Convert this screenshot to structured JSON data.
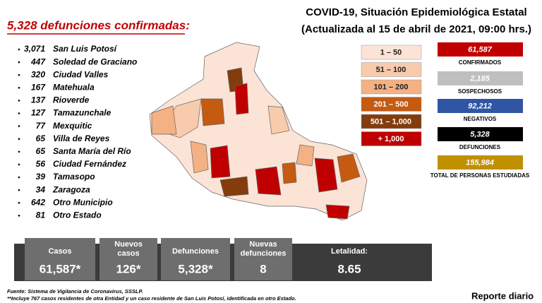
{
  "header": {
    "subtitle": "5,328 defunciones confirmadas:",
    "title_line1": "COVID-19, Situación Epidemiológica Estatal",
    "title_line2": "(Actualizada al 15 de abril de 2021, 09:00 hrs.)"
  },
  "municipalities": [
    {
      "count": "3,071",
      "name": "San Luis Potosí"
    },
    {
      "count": "447",
      "name": "Soledad de Graciano"
    },
    {
      "count": "320",
      "name": "Ciudad Valles"
    },
    {
      "count": "167",
      "name": "Matehuala"
    },
    {
      "count": "137",
      "name": "Rioverde"
    },
    {
      "count": "127",
      "name": "Tamazunchale"
    },
    {
      "count": "77",
      "name": "Mexquitic"
    },
    {
      "count": "65",
      "name": "Villa de Reyes"
    },
    {
      "count": "65",
      "name": "Santa María del Río"
    },
    {
      "count": "56",
      "name": "Ciudad Fernández"
    },
    {
      "count": "39",
      "name": "Tamasopo"
    },
    {
      "count": "34",
      "name": "Zaragoza"
    },
    {
      "count": "642",
      "name": "Otro Municipio"
    },
    {
      "count": "81",
      "name": "Otro Estado"
    }
  ],
  "legend": [
    {
      "label": "1 – 50",
      "color": "#fbe3d6",
      "text_color": "#222"
    },
    {
      "label": "51 – 100",
      "color": "#f8cbad",
      "text_color": "#222"
    },
    {
      "label": "101 – 200",
      "color": "#f4b183",
      "text_color": "#222"
    },
    {
      "label": "201 – 500",
      "color": "#c55a11",
      "text_color": "#fff"
    },
    {
      "label": "501 – 1,000",
      "color": "#843c0c",
      "text_color": "#fff"
    },
    {
      "label": "+ 1,000",
      "color": "#c00000",
      "text_color": "#fff"
    }
  ],
  "stats": [
    {
      "value": "61,587",
      "label": "CONFIRMADOS",
      "color": "#c00000",
      "text_color": "#fff"
    },
    {
      "value": "2,185",
      "label": "SOSPECHOSOS",
      "color": "#bfbfbf",
      "text_color": "#fff"
    },
    {
      "value": "92,212",
      "label": "NEGATIVOS",
      "color": "#2f55a4",
      "text_color": "#fff"
    },
    {
      "value": "5,328",
      "label": "DEFUNCIONES",
      "color": "#000000",
      "text_color": "#fff"
    },
    {
      "value": "155,984",
      "label": "TOTAL DE PERSONAS ESTUDIADAS",
      "color": "#bf9000",
      "text_color": "#fff"
    }
  ],
  "summary": [
    {
      "label": "Casos",
      "value": "61,587*"
    },
    {
      "label": "Nuevos casos",
      "value": "126*"
    },
    {
      "label": "Defunciones",
      "value": "5,328*"
    },
    {
      "label": "Nuevas defunciones",
      "value": "8"
    },
    {
      "label": "Letalidad:",
      "value": "8.65"
    }
  ],
  "footer": {
    "source": "Fuente: Sistema de Vigilancia de Coronavirus, SSSLP.",
    "note": "**Incluye 767 casos residentes de otra Entidad y un caso residente de San Luis Potosí, identificada en otro Estado.",
    "report": "Reporte diario"
  }
}
